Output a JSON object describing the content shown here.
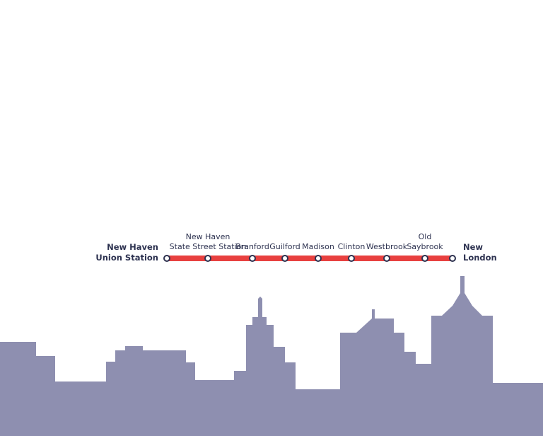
{
  "route": {
    "stations": [
      {
        "lines": [
          "New Haven",
          "Union Station"
        ],
        "major": true
      },
      {
        "lines": [
          "New Haven",
          "State Street Station"
        ]
      },
      {
        "lines": [
          "Branford"
        ]
      },
      {
        "lines": [
          "Guilford"
        ]
      },
      {
        "lines": [
          "Madison"
        ]
      },
      {
        "lines": [
          "Clinton"
        ]
      },
      {
        "lines": [
          "Westbrook"
        ]
      },
      {
        "lines": [
          "Old",
          "Saybrook"
        ]
      },
      {
        "lines": [
          "New",
          "London"
        ],
        "major": true
      }
    ]
  }
}
